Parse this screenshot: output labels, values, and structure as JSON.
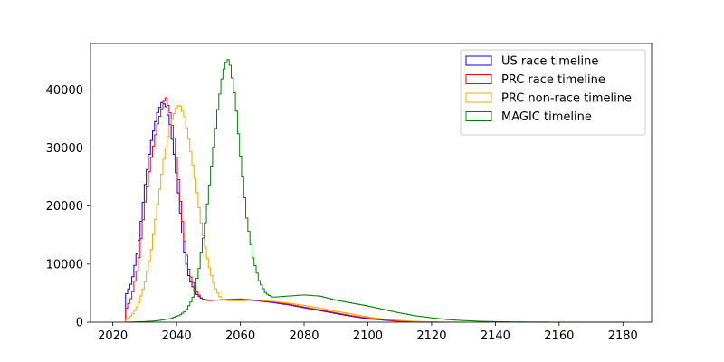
{
  "chart_data": {
    "type": "histogram-step",
    "title": "",
    "xlabel": "",
    "ylabel": "",
    "xlim": [
      2013,
      2189
    ],
    "ylim": [
      0,
      48000
    ],
    "x_ticks": [
      2020,
      2040,
      2060,
      2080,
      2100,
      2120,
      2140,
      2160,
      2180
    ],
    "y_ticks": [
      0,
      10000,
      20000,
      30000,
      40000
    ],
    "grid": false,
    "legend_position": "top-right",
    "bin_width": 0.65,
    "series": [
      {
        "name": "US race timeline",
        "color": "#0000ff",
        "points": [
          [
            2024.0,
            4500
          ],
          [
            2026.0,
            7000
          ],
          [
            2028.0,
            13000
          ],
          [
            2030.0,
            23000
          ],
          [
            2032.0,
            31000
          ],
          [
            2034.0,
            36000
          ],
          [
            2035.5,
            38000
          ],
          [
            2036.8,
            37000
          ],
          [
            2038.0,
            34000
          ],
          [
            2039.5,
            28000
          ],
          [
            2041.0,
            20000
          ],
          [
            2042.5,
            12000
          ],
          [
            2044.0,
            7500
          ],
          [
            2046.0,
            5000
          ],
          [
            2048.0,
            4000
          ],
          [
            2050.0,
            3800
          ],
          [
            2055.0,
            3800
          ],
          [
            2060.0,
            3900
          ],
          [
            2065.0,
            3700
          ],
          [
            2070.0,
            3400
          ],
          [
            2075.0,
            3000
          ],
          [
            2080.0,
            2500
          ],
          [
            2085.0,
            2000
          ],
          [
            2090.0,
            1500
          ],
          [
            2095.0,
            1000
          ],
          [
            2100.0,
            600
          ],
          [
            2105.0,
            350
          ],
          [
            2110.0,
            150
          ],
          [
            2115.0,
            60
          ],
          [
            2120.0,
            20
          ],
          [
            2124.0,
            0
          ]
        ]
      },
      {
        "name": "PRC race timeline",
        "color": "#ff0000",
        "points": [
          [
            2024.0,
            2000
          ],
          [
            2026.0,
            4500
          ],
          [
            2028.0,
            10000
          ],
          [
            2030.0,
            20000
          ],
          [
            2032.0,
            28000
          ],
          [
            2034.0,
            34000
          ],
          [
            2035.5,
            37000
          ],
          [
            2036.5,
            39000
          ],
          [
            2038.0,
            36000
          ],
          [
            2039.5,
            31000
          ],
          [
            2041.0,
            22000
          ],
          [
            2042.5,
            14000
          ],
          [
            2044.0,
            8500
          ],
          [
            2046.0,
            5500
          ],
          [
            2048.0,
            4000
          ],
          [
            2050.0,
            3700
          ],
          [
            2055.0,
            3900
          ],
          [
            2060.0,
            4000
          ],
          [
            2065.0,
            3800
          ],
          [
            2070.0,
            3500
          ],
          [
            2075.0,
            3100
          ],
          [
            2080.0,
            2600
          ],
          [
            2085.0,
            2100
          ],
          [
            2090.0,
            1600
          ],
          [
            2095.0,
            1100
          ],
          [
            2100.0,
            700
          ],
          [
            2105.0,
            400
          ],
          [
            2110.0,
            180
          ],
          [
            2115.0,
            70
          ],
          [
            2120.0,
            20
          ],
          [
            2125.0,
            0
          ]
        ]
      },
      {
        "name": "PRC non-race timeline",
        "color": "#ffa500",
        "points": [
          [
            2024.0,
            300
          ],
          [
            2026.0,
            1200
          ],
          [
            2028.0,
            3000
          ],
          [
            2030.0,
            6500
          ],
          [
            2032.0,
            12000
          ],
          [
            2034.0,
            20000
          ],
          [
            2036.0,
            28000
          ],
          [
            2038.0,
            34000
          ],
          [
            2040.0,
            37000
          ],
          [
            2041.0,
            37500
          ],
          [
            2042.5,
            35500
          ],
          [
            2044.0,
            31000
          ],
          [
            2046.0,
            24000
          ],
          [
            2048.0,
            16000
          ],
          [
            2050.0,
            10000
          ],
          [
            2052.0,
            6000
          ],
          [
            2054.0,
            4000
          ],
          [
            2056.0,
            3700
          ],
          [
            2060.0,
            3700
          ],
          [
            2065.0,
            3800
          ],
          [
            2070.0,
            3600
          ],
          [
            2075.0,
            3300
          ],
          [
            2080.0,
            2900
          ],
          [
            2085.0,
            2400
          ],
          [
            2090.0,
            1900
          ],
          [
            2095.0,
            1400
          ],
          [
            2100.0,
            900
          ],
          [
            2105.0,
            550
          ],
          [
            2110.0,
            300
          ],
          [
            2115.0,
            150
          ],
          [
            2120.0,
            60
          ],
          [
            2125.0,
            20
          ],
          [
            2130.0,
            0
          ]
        ]
      },
      {
        "name": "MAGIC timeline",
        "color": "#008000",
        "points": [
          [
            2024.0,
            0
          ],
          [
            2030.0,
            100
          ],
          [
            2034.0,
            250
          ],
          [
            2038.0,
            600
          ],
          [
            2041.0,
            1200
          ],
          [
            2043.0,
            2000
          ],
          [
            2045.0,
            4000
          ],
          [
            2047.0,
            9000
          ],
          [
            2049.0,
            17000
          ],
          [
            2051.0,
            27000
          ],
          [
            2053.0,
            37000
          ],
          [
            2054.5,
            43000
          ],
          [
            2056.0,
            45500
          ],
          [
            2057.0,
            44000
          ],
          [
            2058.5,
            38000
          ],
          [
            2060.0,
            29000
          ],
          [
            2062.0,
            18000
          ],
          [
            2064.0,
            11000
          ],
          [
            2066.0,
            7000
          ],
          [
            2068.0,
            5000
          ],
          [
            2070.0,
            4300
          ],
          [
            2075.0,
            4500
          ],
          [
            2080.0,
            4700
          ],
          [
            2085.0,
            4500
          ],
          [
            2090.0,
            3800
          ],
          [
            2095.0,
            3300
          ],
          [
            2100.0,
            2800
          ],
          [
            2105.0,
            2200
          ],
          [
            2110.0,
            1600
          ],
          [
            2115.0,
            1100
          ],
          [
            2120.0,
            750
          ],
          [
            2125.0,
            450
          ],
          [
            2130.0,
            280
          ],
          [
            2135.0,
            160
          ],
          [
            2140.0,
            90
          ],
          [
            2145.0,
            50
          ],
          [
            2150.0,
            25
          ],
          [
            2155.0,
            12
          ],
          [
            2160.0,
            6
          ],
          [
            2170.0,
            2
          ],
          [
            2180.0,
            0
          ]
        ]
      }
    ]
  }
}
